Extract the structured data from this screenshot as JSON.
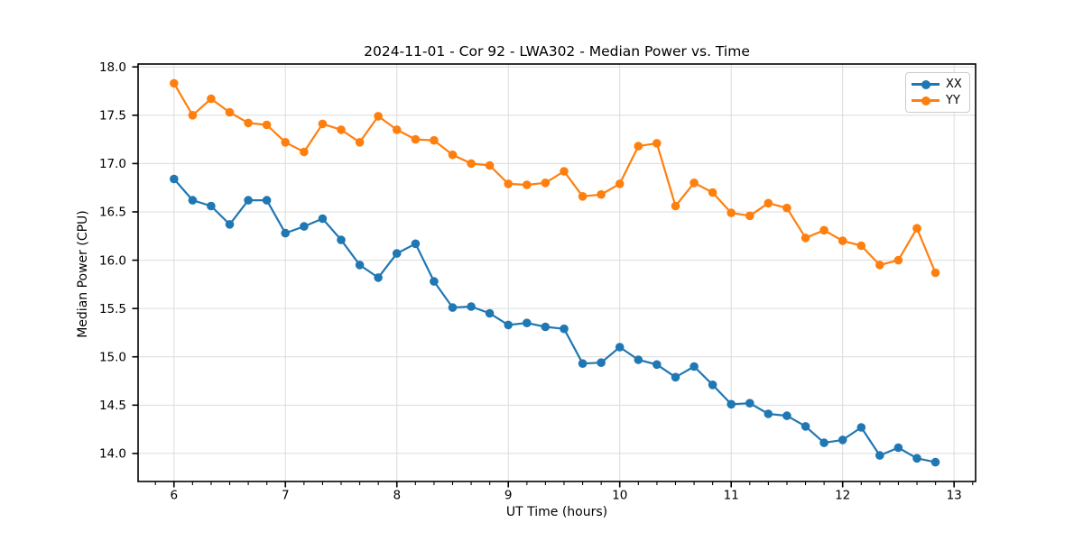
{
  "chart_data": {
    "type": "line",
    "title": "2024-11-01 - Cor 92 - LWA302 - Median Power vs. Time",
    "xlabel": "UT Time (hours)",
    "ylabel": "Median Power (CPU)",
    "xlim": [
      5.678,
      13.193
    ],
    "ylim": [
      13.71,
      18.03
    ],
    "x_ticks": [
      6,
      7,
      8,
      9,
      10,
      11,
      12,
      13
    ],
    "y_ticks": [
      14.0,
      14.5,
      15.0,
      15.5,
      16.0,
      16.5,
      17.0,
      17.5,
      18.0
    ],
    "x_minor_tick_step": 0.16667,
    "grid": true,
    "grid_color": "#dcdcdc",
    "legend_position": "upper right",
    "x": [
      6.0,
      6.167,
      6.333,
      6.5,
      6.667,
      6.833,
      7.0,
      7.167,
      7.333,
      7.5,
      7.667,
      7.833,
      8.0,
      8.167,
      8.333,
      8.5,
      8.667,
      8.833,
      9.0,
      9.167,
      9.333,
      9.5,
      9.667,
      9.833,
      10.0,
      10.167,
      10.333,
      10.5,
      10.667,
      10.833,
      11.0,
      11.167,
      11.333,
      11.5,
      11.667,
      11.833,
      12.0,
      12.167,
      12.333,
      12.5,
      12.667,
      12.833
    ],
    "series": [
      {
        "name": "XX",
        "color": "#1f77b4",
        "values": [
          16.84,
          16.62,
          16.56,
          16.37,
          16.62,
          16.62,
          16.28,
          16.35,
          16.43,
          16.21,
          15.95,
          15.82,
          16.07,
          16.17,
          15.78,
          15.51,
          15.52,
          15.45,
          15.33,
          15.35,
          15.31,
          15.29,
          14.93,
          14.94,
          15.1,
          14.97,
          14.92,
          14.79,
          14.9,
          14.71,
          14.51,
          14.52,
          14.41,
          14.39,
          14.28,
          14.11,
          14.14,
          14.27,
          13.98,
          14.06,
          13.95,
          13.91
        ]
      },
      {
        "name": "YY",
        "color": "#ff7f0e",
        "values": [
          17.83,
          17.5,
          17.67,
          17.53,
          17.42,
          17.4,
          17.22,
          17.12,
          17.41,
          17.35,
          17.22,
          17.49,
          17.35,
          17.25,
          17.24,
          17.09,
          17.0,
          16.98,
          16.79,
          16.78,
          16.8,
          16.92,
          16.66,
          16.68,
          16.79,
          17.18,
          17.21,
          16.56,
          16.8,
          16.7,
          16.49,
          16.46,
          16.59,
          16.54,
          16.23,
          16.31,
          16.2,
          16.15,
          15.95,
          16.0,
          16.33,
          15.87
        ]
      }
    ]
  }
}
